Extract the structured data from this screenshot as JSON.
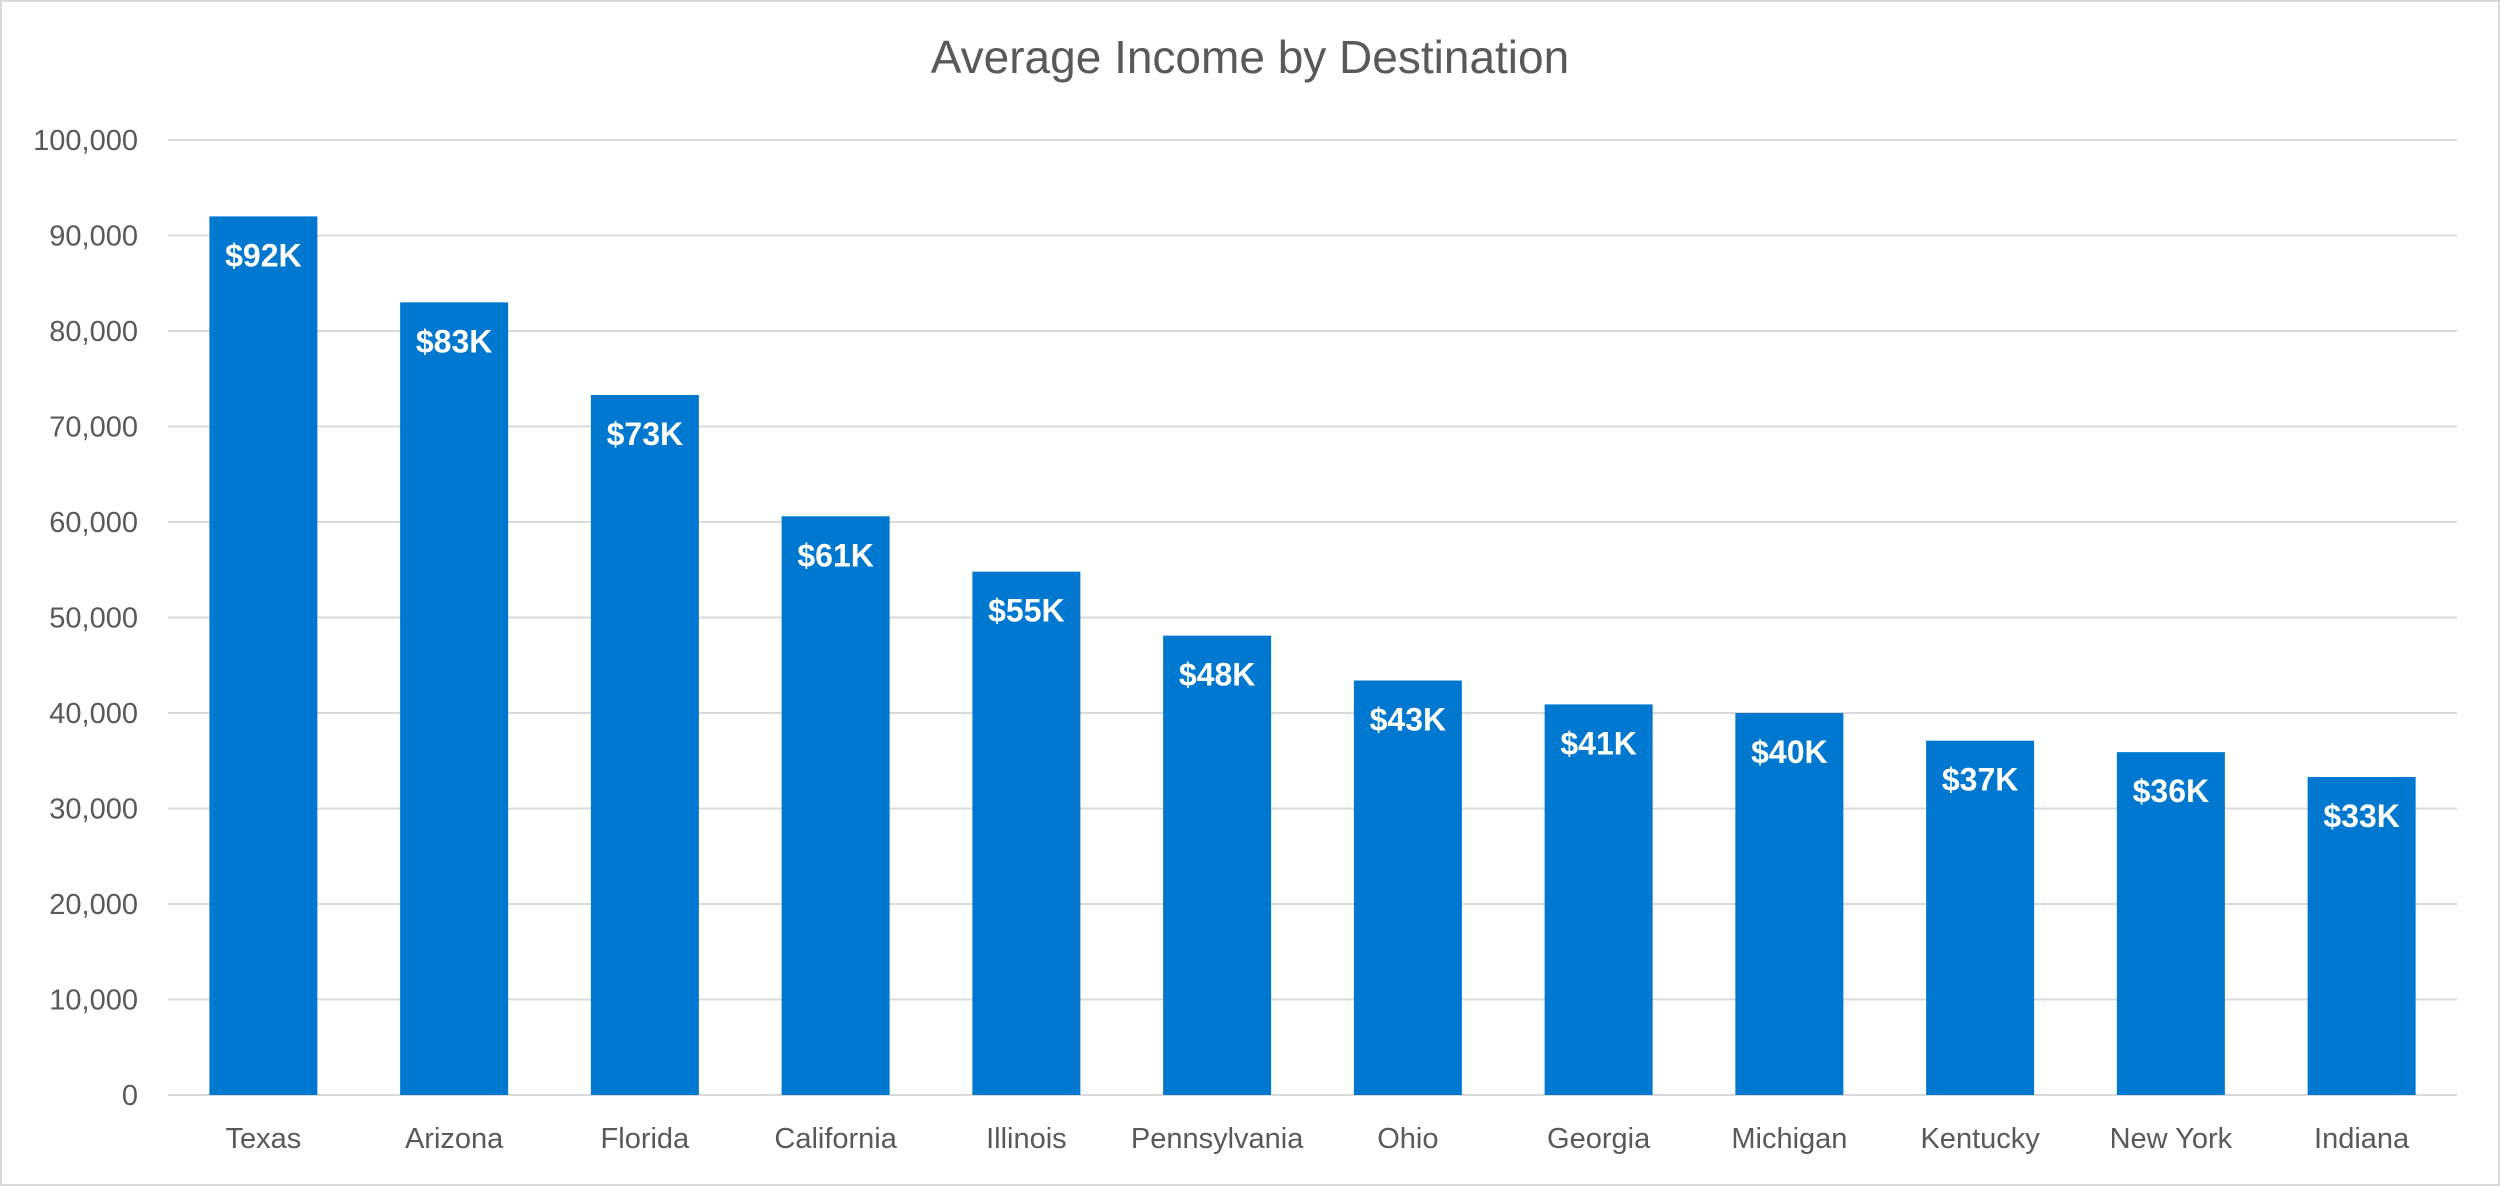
{
  "chart_data": {
    "type": "bar",
    "title": "Average Income by Destination",
    "xlabel": "",
    "ylabel": "",
    "categories": [
      "Texas",
      "Arizona",
      "Florida",
      "California",
      "Illinois",
      "Pennsylvania",
      "Ohio",
      "Georgia",
      "Michigan",
      "Kentucky",
      "New York",
      "Indiana"
    ],
    "values": [
      92000,
      83000,
      73300,
      60600,
      54800,
      48100,
      43400,
      40900,
      40000,
      37100,
      35900,
      33300
    ],
    "data_labels": [
      "$92K",
      "$83K",
      "$73K",
      "$61K",
      "$55K",
      "$48K",
      "$43K",
      "$41K",
      "$40K",
      "$37K",
      "$36K",
      "$33K"
    ],
    "ylim": [
      0,
      100000
    ],
    "yticks": [
      0,
      10000,
      20000,
      30000,
      40000,
      50000,
      60000,
      70000,
      80000,
      90000,
      100000
    ],
    "ytick_labels": [
      "0",
      "10,000",
      "20,000",
      "30,000",
      "40,000",
      "50,000",
      "60,000",
      "70,000",
      "80,000",
      "90,000",
      "100,000"
    ],
    "grid": true,
    "legend": "none",
    "colors": {
      "bar": "#0078d0",
      "grid": "#d9d9d9",
      "text": "#595959"
    }
  }
}
